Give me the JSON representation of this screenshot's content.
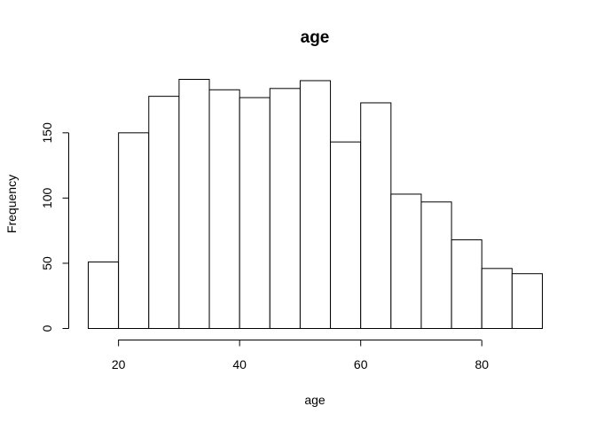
{
  "chart_data": {
    "type": "bar",
    "title": "age",
    "xlabel": "age",
    "ylabel": "Frequency",
    "bin_edges": [
      15,
      20,
      25,
      30,
      35,
      40,
      45,
      50,
      55,
      60,
      65,
      70,
      75,
      80,
      85,
      90
    ],
    "values": [
      51,
      150,
      178,
      191,
      183,
      177,
      184,
      190,
      143,
      173,
      103,
      97,
      68,
      46,
      42
    ],
    "xlim": [
      15,
      90
    ],
    "ylim": [
      0,
      191
    ],
    "x_ticks": [
      20,
      40,
      60,
      80
    ],
    "y_ticks": [
      0,
      50,
      100,
      150
    ],
    "grid": false,
    "legend": "none",
    "colors": {
      "bar_fill": "#ffffff",
      "bar_stroke": "#000000"
    }
  }
}
